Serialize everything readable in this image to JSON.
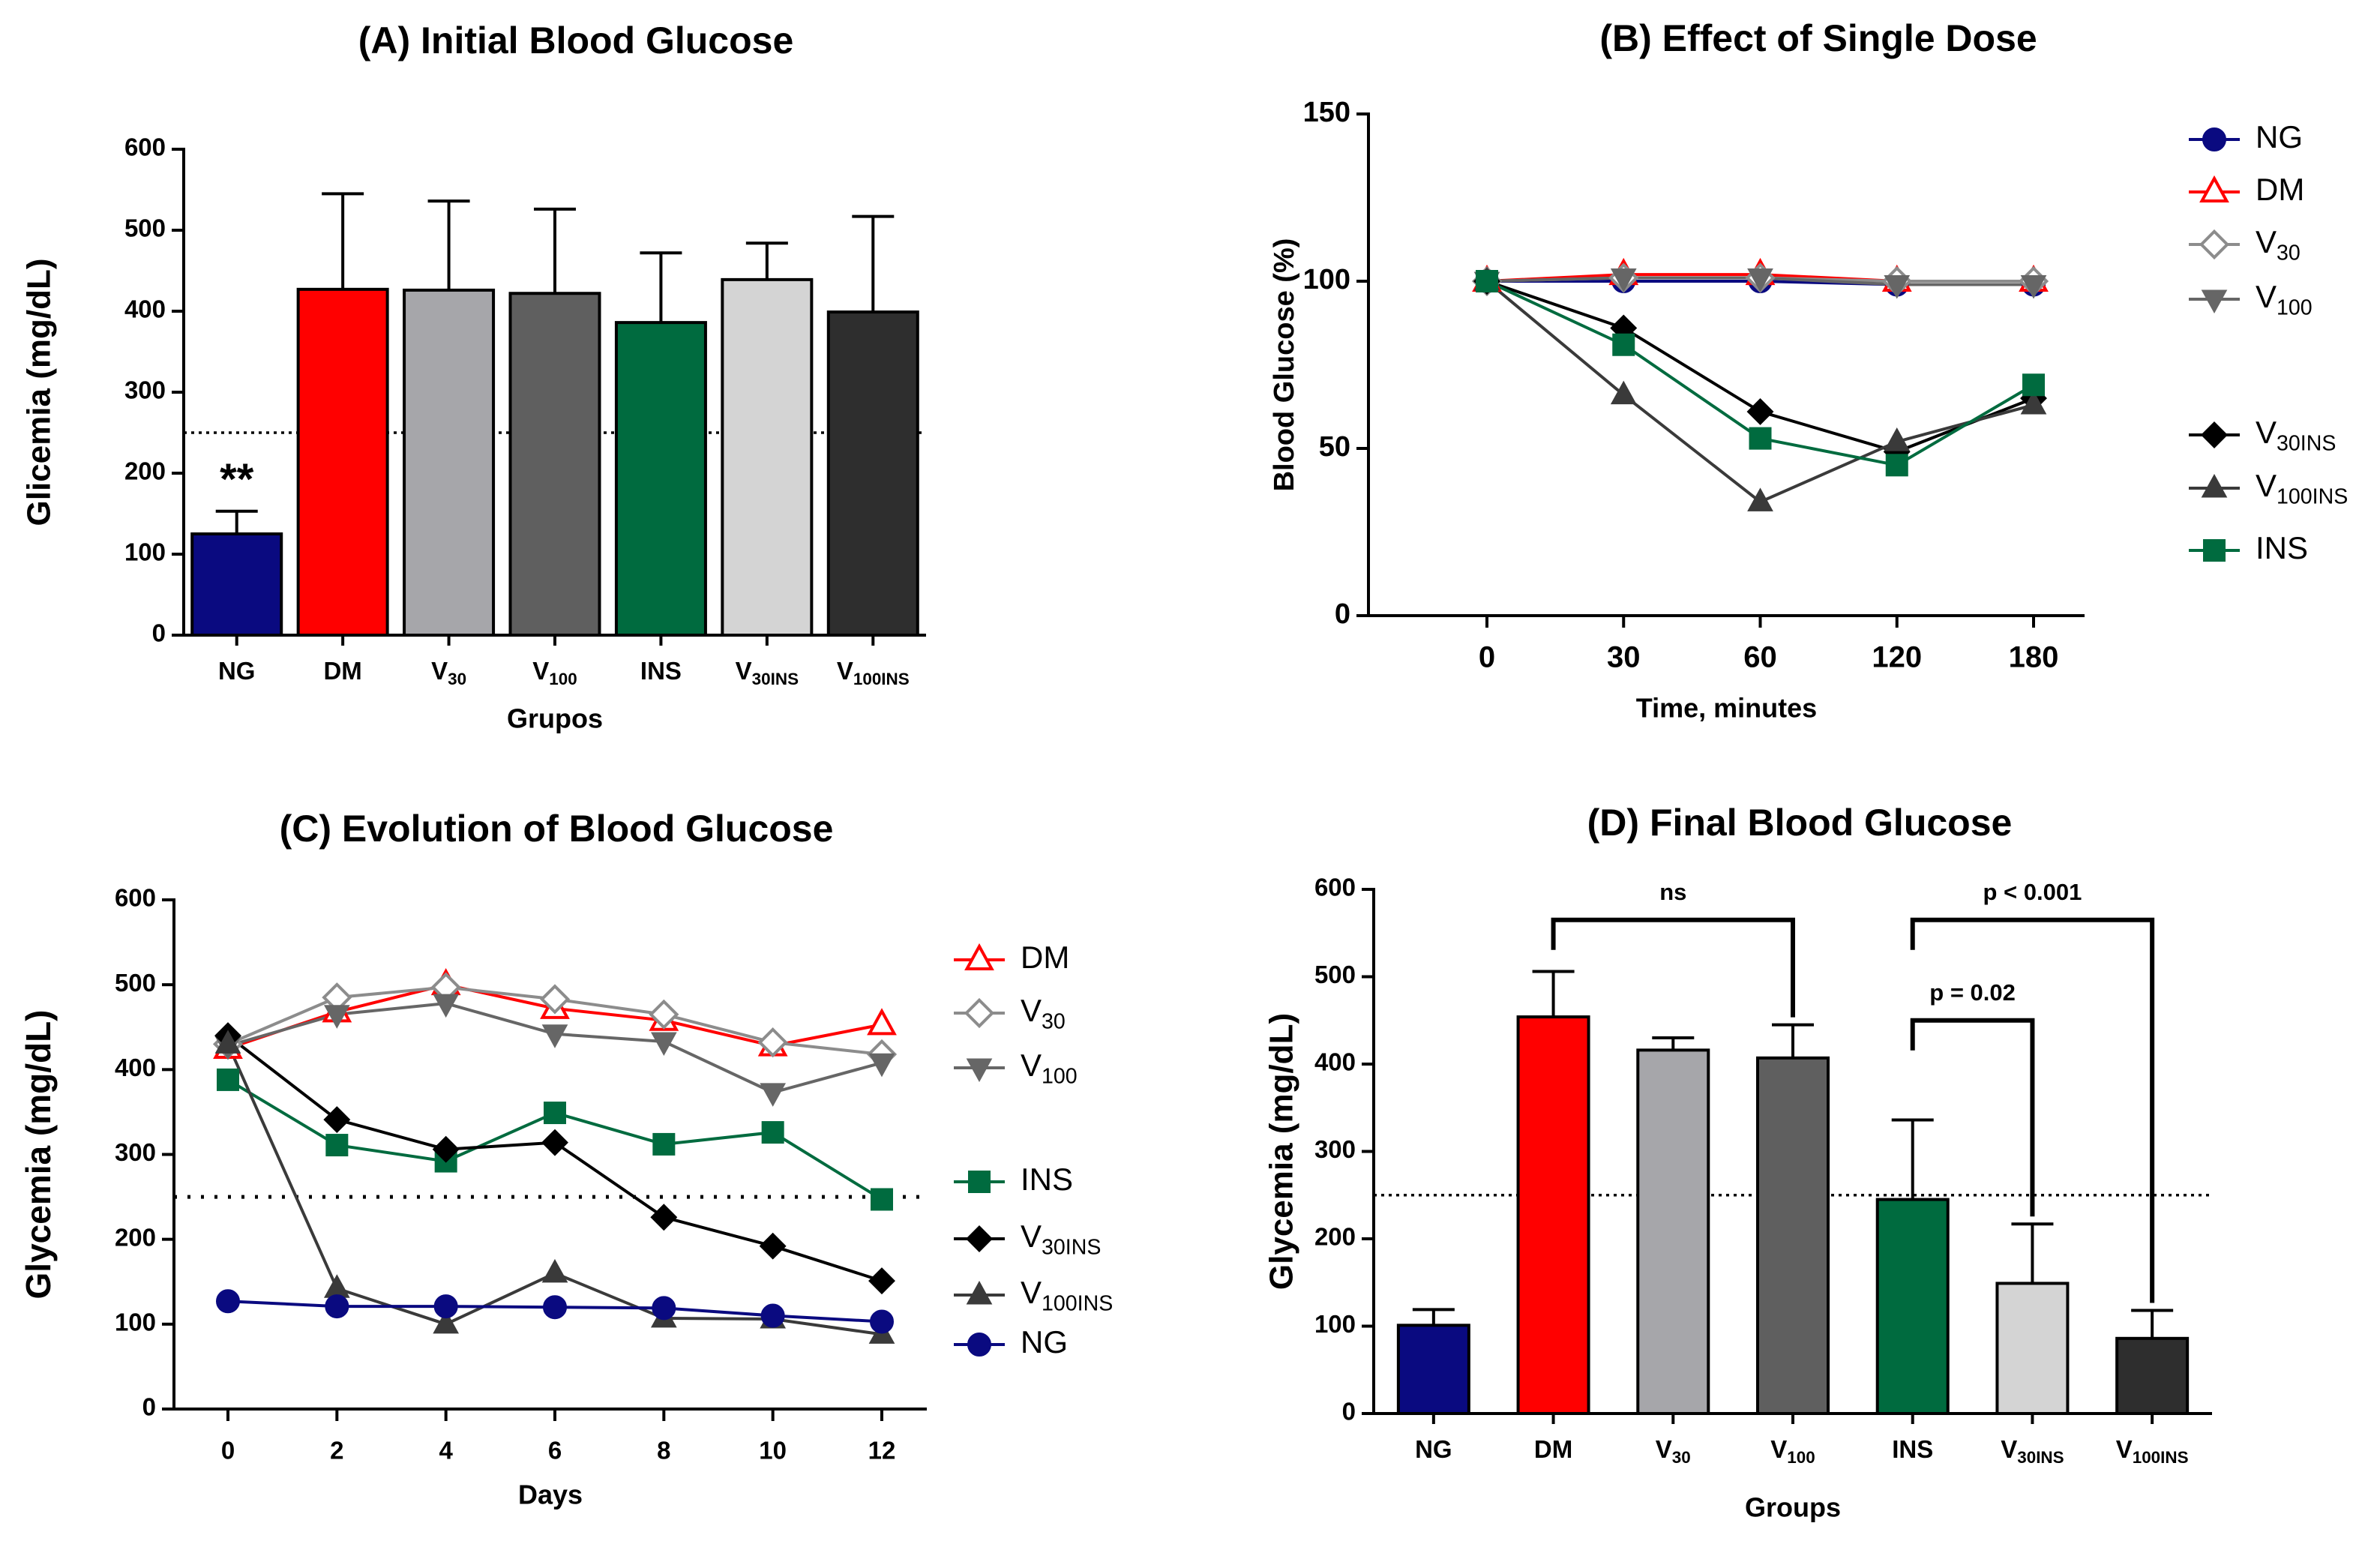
{
  "chart_data": [
    {
      "panel": "A",
      "type": "bar",
      "title": "(A) Initial Blood Glucose",
      "xlabel": "Grupos",
      "ylabel": "Glicemia (mg/dL)",
      "ylim": [
        0,
        600
      ],
      "yticks": [
        0,
        100,
        200,
        300,
        400,
        500,
        600
      ],
      "threshold": 250,
      "categories": [
        {
          "main": "NG",
          "sub": ""
        },
        {
          "main": "DM",
          "sub": ""
        },
        {
          "main": "V",
          "sub": "30"
        },
        {
          "main": "V",
          "sub": "100"
        },
        {
          "main": "INS",
          "sub": ""
        },
        {
          "main": "V",
          "sub": "30INS"
        },
        {
          "main": "V",
          "sub": "100INS"
        }
      ],
      "values": [
        125,
        427,
        426,
        422,
        386,
        439,
        399
      ],
      "errors": [
        28,
        118,
        110,
        104,
        86,
        45,
        118
      ],
      "colors": [
        "#0a0a80",
        "#ff0000",
        "#a6a6aa",
        "#5f5f5f",
        "#006b3f",
        "#d4d4d4",
        "#2e2e2e"
      ],
      "annotations": [
        {
          "bar": 0,
          "text": "**"
        }
      ]
    },
    {
      "panel": "B",
      "type": "line",
      "title": "(B) Effect of Single Dose",
      "xlabel": "Time, minutes",
      "ylabel": "Blood Glucose (%)",
      "x": [
        "0",
        "30",
        "60",
        "120",
        "180"
      ],
      "ylim": [
        0,
        150
      ],
      "yticks": [
        0,
        50,
        100,
        150
      ],
      "series": [
        {
          "name": "NG",
          "sub": "",
          "marker": "circle",
          "color": "#0a0a80",
          "values": [
            100,
            100,
            100,
            99,
            99
          ]
        },
        {
          "name": "DM",
          "sub": "",
          "marker": "triangle-open",
          "color": "#ff0000",
          "values": [
            100,
            102,
            102,
            100,
            100
          ]
        },
        {
          "name": "V",
          "sub": "30",
          "marker": "diamond-open",
          "color": "#8c8c8c",
          "values": [
            100,
            101,
            101,
            100,
            100
          ]
        },
        {
          "name": "V",
          "sub": "100",
          "marker": "triangle-down",
          "color": "#666666",
          "values": [
            100,
            101,
            101,
            99,
            99
          ]
        },
        {
          "name": "V",
          "sub": "30INS",
          "marker": "diamond",
          "color": "#000000",
          "values": [
            100,
            86,
            61,
            49,
            65
          ]
        },
        {
          "name": "V",
          "sub": "100INS",
          "marker": "triangle",
          "color": "#3a3a3a",
          "values": [
            100,
            66,
            34,
            52,
            63
          ]
        },
        {
          "name": "INS",
          "sub": "",
          "marker": "square",
          "color": "#006b3f",
          "values": [
            100,
            81,
            53,
            45,
            69
          ]
        }
      ]
    },
    {
      "panel": "C",
      "type": "line",
      "title": "(C) Evolution of Blood Glucose",
      "xlabel": "Days",
      "ylabel": "Glycemia (mg/dL)",
      "x": [
        0,
        2,
        4,
        6,
        8,
        10,
        12
      ],
      "ylim": [
        0,
        600
      ],
      "yticks": [
        0,
        100,
        200,
        300,
        400,
        500,
        600
      ],
      "threshold": 250,
      "series": [
        {
          "name": "DM",
          "sub": "",
          "marker": "triangle-open",
          "color": "#ff0000",
          "values": [
            425,
            468,
            500,
            472,
            458,
            428,
            453
          ]
        },
        {
          "name": "V",
          "sub": "30",
          "marker": "diamond-open",
          "color": "#8c8c8c",
          "values": [
            430,
            485,
            497,
            483,
            465,
            432,
            418
          ]
        },
        {
          "name": "V",
          "sub": "100",
          "marker": "triangle-down",
          "color": "#666666",
          "values": [
            428,
            465,
            478,
            442,
            433,
            373,
            408
          ]
        },
        {
          "name": "INS",
          "sub": "",
          "marker": "square",
          "color": "#006b3f",
          "values": [
            388,
            311,
            292,
            349,
            312,
            326,
            247
          ]
        },
        {
          "name": "V",
          "sub": "30INS",
          "marker": "diamond",
          "color": "#000000",
          "values": [
            440,
            341,
            306,
            314,
            226,
            192,
            151
          ]
        },
        {
          "name": "V",
          "sub": "100INS",
          "marker": "triangle",
          "color": "#3a3a3a",
          "values": [
            430,
            142,
            100,
            160,
            107,
            106,
            88
          ]
        },
        {
          "name": "NG",
          "sub": "",
          "marker": "circle",
          "color": "#0a0a80",
          "values": [
            127,
            121,
            121,
            120,
            119,
            110,
            103
          ]
        }
      ]
    },
    {
      "panel": "D",
      "type": "bar",
      "title": "(D) Final Blood Glucose",
      "xlabel": "Groups",
      "ylabel": "Glycemia (mg/dL)",
      "ylim": [
        0,
        600
      ],
      "yticks": [
        0,
        100,
        200,
        300,
        400,
        500,
        600
      ],
      "threshold": 250,
      "categories": [
        {
          "main": "NG",
          "sub": ""
        },
        {
          "main": "DM",
          "sub": ""
        },
        {
          "main": "V",
          "sub": "30"
        },
        {
          "main": "V",
          "sub": "100"
        },
        {
          "main": "INS",
          "sub": ""
        },
        {
          "main": "V",
          "sub": "30INS"
        },
        {
          "main": "V",
          "sub": "100INS"
        }
      ],
      "values": [
        101,
        454,
        416,
        407,
        245,
        149,
        86
      ],
      "errors": [
        18,
        52,
        14,
        38,
        91,
        68,
        32
      ],
      "colors": [
        "#0a0a80",
        "#ff0000",
        "#a6a6aa",
        "#5f5f5f",
        "#006b3f",
        "#d4d4d4",
        "#2e2e2e"
      ],
      "brackets": [
        {
          "from": 1,
          "to": 3,
          "text": "ns",
          "level": 565
        },
        {
          "from": 4,
          "to": 5,
          "text": "p = 0.02",
          "level": 450
        },
        {
          "from": 4,
          "to": 6,
          "text": "p < 0.001",
          "level": 565
        }
      ]
    }
  ]
}
